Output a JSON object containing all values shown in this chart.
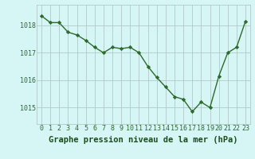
{
  "x": [
    0,
    1,
    2,
    3,
    4,
    5,
    6,
    7,
    8,
    9,
    10,
    11,
    12,
    13,
    14,
    15,
    16,
    17,
    18,
    19,
    20,
    21,
    22,
    23
  ],
  "y": [
    1018.35,
    1018.1,
    1018.1,
    1017.75,
    1017.65,
    1017.45,
    1017.2,
    1017.0,
    1017.2,
    1017.15,
    1017.2,
    1017.0,
    1016.5,
    1016.1,
    1015.75,
    1015.4,
    1015.3,
    1014.85,
    1015.2,
    1015.0,
    1016.15,
    1017.0,
    1017.2,
    1018.15
  ],
  "line_color": "#2d6a2d",
  "marker": "D",
  "marker_size": 2.2,
  "line_width": 1.0,
  "bg_color": "#d6f5f5",
  "grid_color": "#b0c8c8",
  "xlabel": "Graphe pression niveau de la mer (hPa)",
  "xlabel_fontsize": 7.5,
  "xlabel_color": "#1a4d1a",
  "tick_label_color": "#2d6a2d",
  "tick_fontsize": 6.0,
  "ytick_values": [
    1015,
    1016,
    1017,
    1018
  ],
  "ytick_labels": [
    "1015",
    "1016",
    "1017",
    "1018"
  ],
  "ylim": [
    1014.4,
    1018.75
  ],
  "xlim": [
    -0.5,
    23.5
  ],
  "xtick_labels": [
    "0",
    "1",
    "2",
    "3",
    "4",
    "5",
    "6",
    "7",
    "8",
    "9",
    "10",
    "11",
    "12",
    "13",
    "14",
    "15",
    "16",
    "17",
    "18",
    "19",
    "20",
    "21",
    "22",
    "23"
  ]
}
